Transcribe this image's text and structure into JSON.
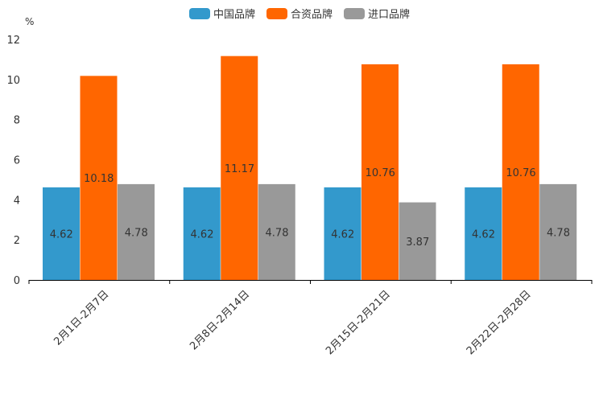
{
  "chart_data": {
    "type": "bar",
    "unit_label": "%",
    "categories": [
      "2月1日-2月7日",
      "2月8日-2月14日",
      "2月15日-2月21日",
      "2月22日-2月28日"
    ],
    "series": [
      {
        "name": "中国品牌",
        "color": "#3399cc",
        "values": [
          4.62,
          4.62,
          4.62,
          4.62
        ]
      },
      {
        "name": "合资品牌",
        "color": "#ff6600",
        "values": [
          10.18,
          11.17,
          10.76,
          10.76
        ]
      },
      {
        "name": "进口品牌",
        "color": "#999999",
        "values": [
          4.78,
          4.78,
          3.87,
          4.78
        ]
      }
    ],
    "ylim": [
      0,
      12
    ],
    "yticks": [
      0,
      2,
      4,
      6,
      8,
      10,
      12
    ],
    "legend_position": "top-center"
  }
}
